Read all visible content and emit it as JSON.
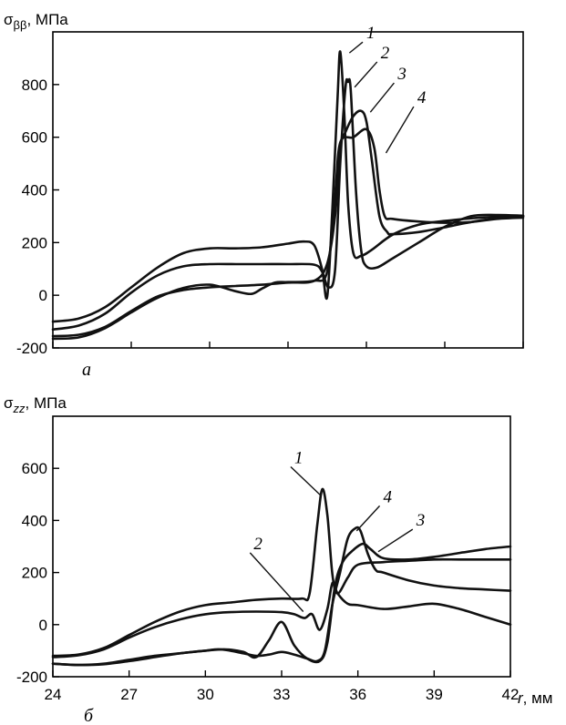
{
  "chart_data": [
    {
      "type": "line",
      "panel_label": "а",
      "ylabel": "σ",
      "ylabel_sub": "ββ",
      "ylabel_unit": ", МПа",
      "xlim": [
        24,
        42
      ],
      "ylim": [
        -200,
        1000
      ],
      "yticks": [
        -200,
        0,
        200,
        400,
        600,
        800
      ],
      "series": [
        {
          "name": "1",
          "x": [
            24,
            25,
            26,
            27,
            28,
            29,
            30,
            31,
            32,
            33,
            33.6,
            34,
            34.3,
            34.5,
            34.7,
            34.9,
            35.0,
            35.15,
            35.3,
            35.5,
            35.8,
            36.2,
            37,
            38,
            39,
            40,
            41,
            42
          ],
          "y": [
            -100,
            -88,
            -45,
            30,
            105,
            160,
            178,
            178,
            182,
            196,
            204,
            190,
            100,
            -5,
            330,
            760,
            925,
            700,
            350,
            160,
            150,
            172,
            230,
            268,
            282,
            292,
            298,
            300
          ]
        },
        {
          "name": "2",
          "x": [
            24,
            25,
            26,
            27,
            28,
            29,
            30,
            31,
            32,
            33,
            34,
            34.3,
            34.55,
            34.8,
            35.0,
            35.2,
            35.3,
            35.4,
            35.6,
            35.8,
            36,
            36.4,
            37,
            38,
            39,
            40,
            41,
            42
          ],
          "y": [
            -130,
            -115,
            -70,
            10,
            75,
            110,
            118,
            118,
            118,
            118,
            116,
            90,
            30,
            95,
            500,
            790,
            810,
            780,
            400,
            170,
            110,
            105,
            140,
            200,
            260,
            300,
            305,
            302
          ]
        },
        {
          "name": "3",
          "x": [
            24,
            25,
            26,
            27,
            28,
            29,
            30,
            31,
            32,
            33,
            34,
            34.5,
            34.8,
            35.0,
            35.2,
            35.5,
            35.8,
            36.0,
            36.2,
            36.5,
            36.8,
            37,
            38,
            39,
            40,
            41,
            42
          ],
          "y": [
            -155,
            -150,
            -120,
            -60,
            -5,
            20,
            30,
            35,
            40,
            48,
            55,
            120,
            300,
            560,
            620,
            680,
            700,
            660,
            520,
            300,
            240,
            232,
            240,
            258,
            278,
            292,
            300
          ]
        },
        {
          "name": "4",
          "x": [
            24,
            25,
            26,
            27,
            28,
            29,
            30,
            31,
            31.6,
            32,
            32.5,
            33,
            34,
            34.5,
            34.8,
            35.0,
            35.5,
            36.0,
            36.3,
            36.5,
            36.7,
            37,
            38,
            39,
            40,
            41,
            42
          ],
          "y": [
            -165,
            -160,
            -125,
            -65,
            -10,
            28,
            40,
            15,
            5,
            25,
            48,
            50,
            55,
            90,
            380,
            580,
            600,
            630,
            560,
            400,
            300,
            290,
            280,
            275,
            278,
            290,
            295
          ]
        }
      ]
    },
    {
      "type": "line",
      "panel_label": "б",
      "ylabel": "σ",
      "ylabel_sub": "zz",
      "ylabel_unit": ", МПа",
      "xlabel": "r",
      "xlabel_unit": ", мм",
      "xlim": [
        24,
        42
      ],
      "ylim": [
        -200,
        800
      ],
      "xticks": [
        24,
        27,
        30,
        33,
        36,
        39,
        42
      ],
      "yticks": [
        -200,
        0,
        200,
        400,
        600
      ],
      "series": [
        {
          "name": "1",
          "x": [
            24,
            25,
            26,
            27,
            28,
            29,
            30,
            31,
            32,
            33,
            33.8,
            34.1,
            34.4,
            34.6,
            34.8,
            35.0,
            35.2,
            35.6,
            36,
            37,
            38,
            39,
            40,
            41,
            42
          ],
          "y": [
            -120,
            -115,
            -90,
            -40,
            10,
            50,
            75,
            85,
            95,
            100,
            100,
            120,
            380,
            520,
            420,
            190,
            120,
            180,
            230,
            240,
            245,
            250,
            250,
            250,
            250
          ]
        },
        {
          "name": "2",
          "x": [
            24,
            25,
            26,
            27,
            28,
            29,
            30,
            31,
            32,
            33,
            33.5,
            33.9,
            34.2,
            34.5,
            34.8,
            35.0,
            35.2,
            35.6,
            36,
            37,
            38,
            39,
            40,
            41,
            42
          ],
          "y": [
            -125,
            -118,
            -95,
            -50,
            -10,
            20,
            40,
            48,
            50,
            48,
            40,
            25,
            40,
            -20,
            60,
            160,
            120,
            80,
            75,
            60,
            70,
            80,
            60,
            30,
            0
          ]
        },
        {
          "name": "3",
          "x": [
            24,
            25,
            26,
            27,
            28,
            29,
            30,
            30.8,
            31.5,
            32,
            32.5,
            33,
            33.5,
            34,
            34.5,
            34.8,
            35.1,
            35.4,
            35.8,
            36.2,
            36.5,
            37,
            38,
            39,
            40,
            41,
            42
          ],
          "y": [
            -150,
            -155,
            -150,
            -135,
            -120,
            -110,
            -100,
            -95,
            -105,
            -125,
            -60,
            10,
            -80,
            -130,
            -140,
            -70,
            150,
            240,
            285,
            310,
            290,
            255,
            250,
            260,
            275,
            290,
            300
          ]
        },
        {
          "name": "4",
          "x": [
            24,
            25,
            26,
            27,
            28,
            29,
            30,
            30.6,
            31.5,
            32,
            32.5,
            33,
            33.5,
            34,
            34.4,
            34.7,
            35.0,
            35.3,
            35.6,
            35.9,
            36.1,
            36.4,
            36.7,
            37,
            38,
            39,
            40,
            41,
            42
          ],
          "y": [
            -150,
            -155,
            -152,
            -140,
            -125,
            -110,
            -100,
            -95,
            -110,
            -120,
            -115,
            -105,
            -115,
            -130,
            -140,
            -100,
            80,
            200,
            330,
            370,
            360,
            270,
            210,
            200,
            170,
            150,
            140,
            135,
            130
          ]
        }
      ]
    }
  ]
}
